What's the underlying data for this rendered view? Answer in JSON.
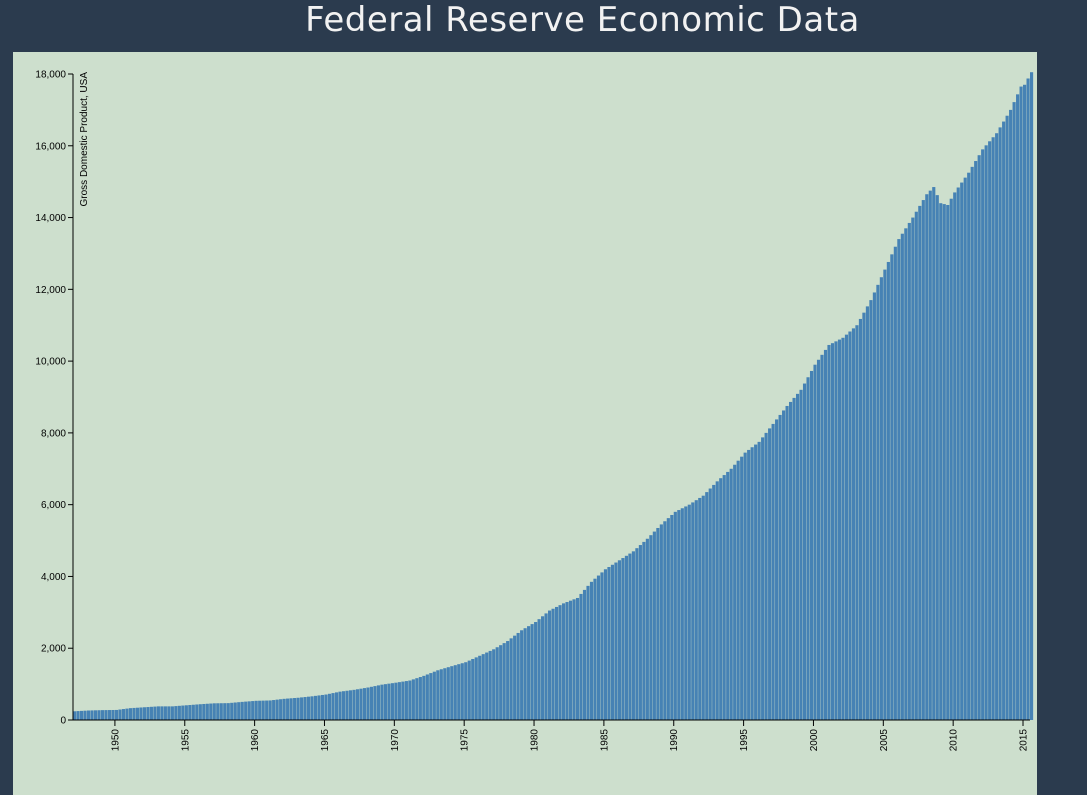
{
  "page": {
    "title": "Federal Reserve Economic Data"
  },
  "colors": {
    "background": "#2b3b4e",
    "panel": "#cddfcd",
    "bar": "#4682b4",
    "title": "#f2f2f2"
  },
  "chart_data": {
    "type": "bar",
    "title": "",
    "xlabel": "",
    "ylabel": "Gross Domestic Product, USA",
    "x_start": 1947.0,
    "x_step": 0.25,
    "xlim": [
      1947.0,
      2015.5
    ],
    "ylim": [
      0,
      18000
    ],
    "grid": false,
    "y_ticks": [
      0,
      2000,
      4000,
      6000,
      8000,
      10000,
      12000,
      14000,
      16000,
      18000
    ],
    "y_tick_labels": [
      "0",
      "2,000",
      "4,000",
      "6,000",
      "8,000",
      "10,000",
      "12,000",
      "14,000",
      "16,000",
      "18,000"
    ],
    "x_ticks": [
      1950,
      1955,
      1960,
      1965,
      1970,
      1975,
      1980,
      1985,
      1990,
      1995,
      2000,
      2005,
      2010,
      2015
    ],
    "x_tick_labels": [
      "1950",
      "1955",
      "1960",
      "1965",
      "1970",
      "1975",
      "1980",
      "1985",
      "1990",
      "1995",
      "2000",
      "2005",
      "2010",
      "2015"
    ],
    "anchors": [
      [
        1947.0,
        243
      ],
      [
        1948.0,
        265
      ],
      [
        1949.0,
        275
      ],
      [
        1950.0,
        280
      ],
      [
        1951.0,
        330
      ],
      [
        1952.0,
        355
      ],
      [
        1953.0,
        380
      ],
      [
        1954.0,
        380
      ],
      [
        1955.0,
        410
      ],
      [
        1956.0,
        440
      ],
      [
        1957.0,
        465
      ],
      [
        1958.0,
        470
      ],
      [
        1959.0,
        505
      ],
      [
        1960.0,
        535
      ],
      [
        1961.0,
        545
      ],
      [
        1962.0,
        590
      ],
      [
        1963.0,
        620
      ],
      [
        1964.0,
        660
      ],
      [
        1965.0,
        710
      ],
      [
        1966.0,
        790
      ],
      [
        1967.0,
        840
      ],
      [
        1968.0,
        905
      ],
      [
        1969.0,
        985
      ],
      [
        1970.0,
        1040
      ],
      [
        1971.0,
        1100
      ],
      [
        1972.0,
        1230
      ],
      [
        1973.0,
        1385
      ],
      [
        1974.0,
        1500
      ],
      [
        1975.0,
        1610
      ],
      [
        1976.0,
        1790
      ],
      [
        1977.0,
        1970
      ],
      [
        1978.0,
        2200
      ],
      [
        1979.0,
        2500
      ],
      [
        1980.0,
        2730
      ],
      [
        1981.0,
        3050
      ],
      [
        1982.0,
        3250
      ],
      [
        1983.0,
        3400
      ],
      [
        1984.0,
        3850
      ],
      [
        1985.0,
        4200
      ],
      [
        1986.0,
        4450
      ],
      [
        1987.0,
        4700
      ],
      [
        1988.0,
        5050
      ],
      [
        1989.0,
        5450
      ],
      [
        1990.0,
        5800
      ],
      [
        1991.0,
        6000
      ],
      [
        1992.0,
        6250
      ],
      [
        1993.0,
        6650
      ],
      [
        1994.0,
        7000
      ],
      [
        1995.0,
        7450
      ],
      [
        1996.0,
        7750
      ],
      [
        1997.0,
        8250
      ],
      [
        1998.0,
        8750
      ],
      [
        1999.0,
        9200
      ],
      [
        2000.0,
        9900
      ],
      [
        2001.0,
        10450
      ],
      [
        2002.0,
        10650
      ],
      [
        2003.0,
        11000
      ],
      [
        2004.0,
        11700
      ],
      [
        2005.0,
        12550
      ],
      [
        2006.0,
        13400
      ],
      [
        2007.0,
        14000
      ],
      [
        2008.0,
        14650
      ],
      [
        2008.5,
        14850
      ],
      [
        2009.0,
        14400
      ],
      [
        2009.5,
        14350
      ],
      [
        2010.0,
        14700
      ],
      [
        2011.0,
        15250
      ],
      [
        2012.0,
        15900
      ],
      [
        2013.0,
        16350
      ],
      [
        2014.0,
        17000
      ],
      [
        2014.75,
        17650
      ],
      [
        2015.0,
        17700
      ],
      [
        2015.5,
        18050
      ]
    ]
  }
}
